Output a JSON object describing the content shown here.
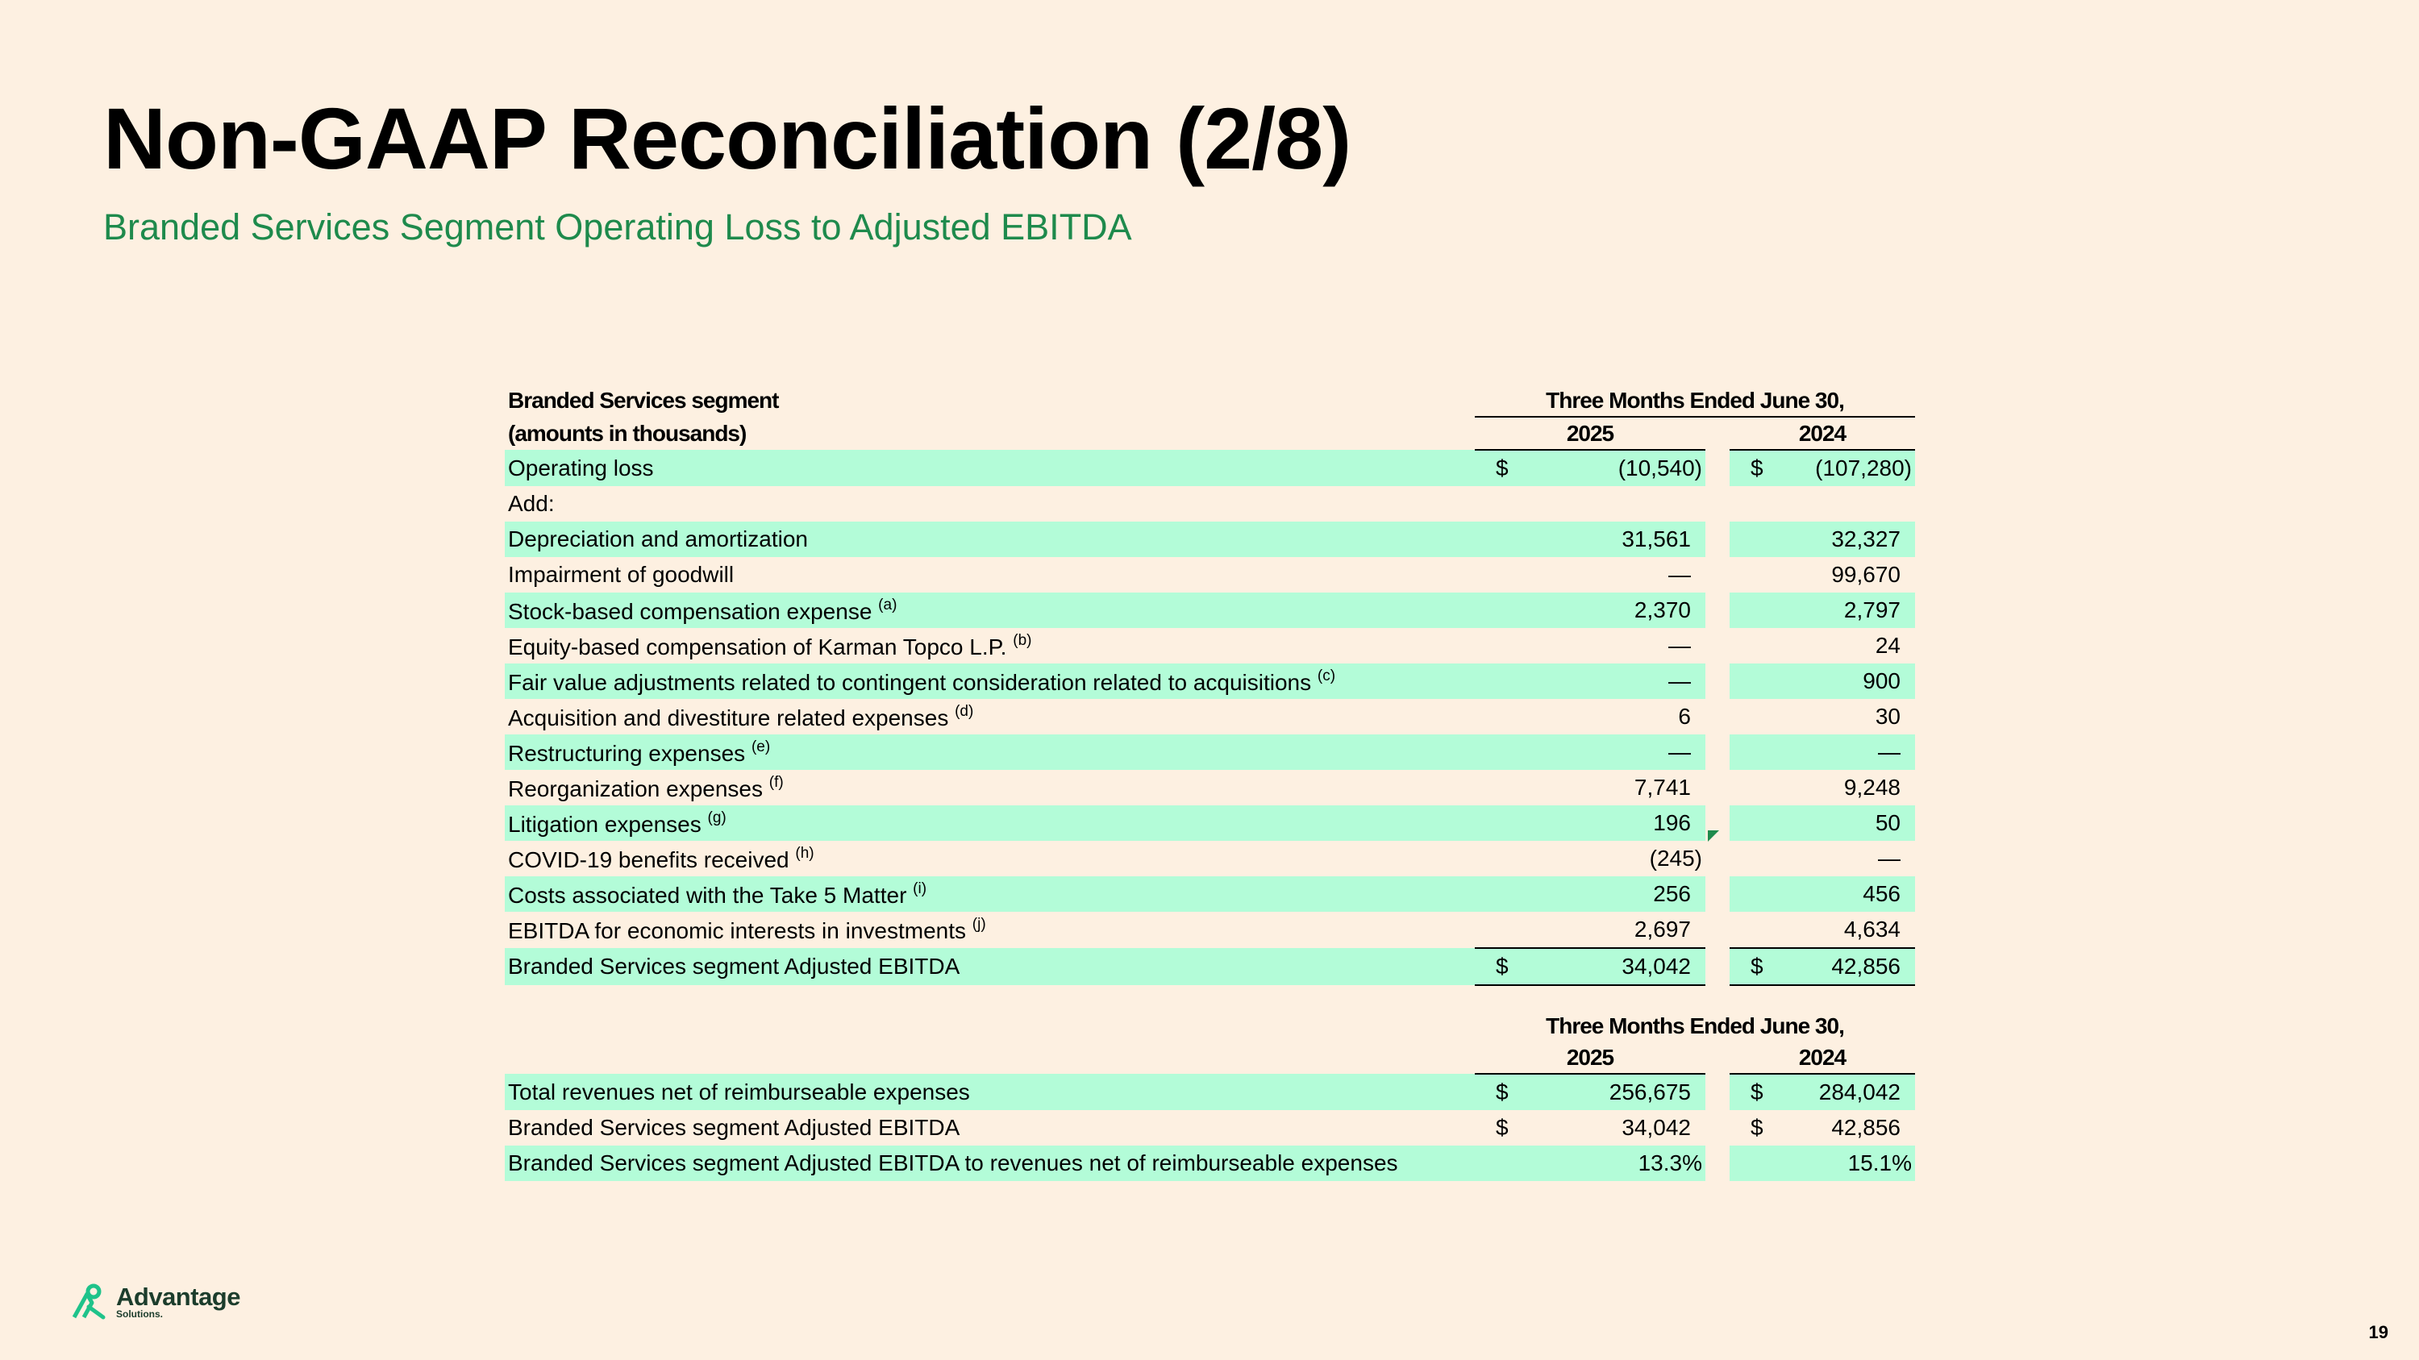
{
  "title": "Non-GAAP Reconciliation (2/8)",
  "subtitle": "Branded Services Segment Operating Loss to Adjusted EBITDA",
  "table1": {
    "header_line1": "Branded Services segment",
    "header_line2": "(amounts in thousands)",
    "period_label": "Three Months Ended June 30,",
    "col_2025": "2025",
    "col_2024": "2024",
    "rows": [
      {
        "label": "Operating loss",
        "sup": "",
        "d1": "$",
        "v2025": "(10,540)",
        "d2": "$",
        "v2024": "(107,280)"
      },
      {
        "label": "Add:",
        "sup": "",
        "d1": "",
        "v2025": "",
        "d2": "",
        "v2024": ""
      },
      {
        "label": "Depreciation and amortization",
        "sup": "",
        "d1": "",
        "v2025": "31,561",
        "d2": "",
        "v2024": "32,327"
      },
      {
        "label": "Impairment of goodwill",
        "sup": "",
        "d1": "",
        "v2025": "—",
        "d2": "",
        "v2024": "99,670"
      },
      {
        "label": "Stock-based compensation expense",
        "sup": "(a)",
        "d1": "",
        "v2025": "2,370",
        "d2": "",
        "v2024": "2,797"
      },
      {
        "label": "Equity-based compensation of Karman Topco L.P.",
        "sup": "(b)",
        "d1": "",
        "v2025": "—",
        "d2": "",
        "v2024": "24"
      },
      {
        "label": "Fair value adjustments related to contingent consideration related to acquisitions",
        "sup": "(c)",
        "d1": "",
        "v2025": "—",
        "d2": "",
        "v2024": "900"
      },
      {
        "label": "Acquisition and divestiture related expenses",
        "sup": "(d)",
        "d1": "",
        "v2025": "6",
        "d2": "",
        "v2024": "30"
      },
      {
        "label": "Restructuring expenses",
        "sup": "(e)",
        "d1": "",
        "v2025": "—",
        "d2": "",
        "v2024": "—"
      },
      {
        "label": "Reorganization expenses",
        "sup": "(f)",
        "d1": "",
        "v2025": "7,741",
        "d2": "",
        "v2024": "9,248"
      },
      {
        "label": "Litigation expenses",
        "sup": "(g)",
        "d1": "",
        "v2025": "196",
        "d2": "",
        "v2024": "50"
      },
      {
        "label": "COVID-19 benefits received",
        "sup": "(h)",
        "d1": "",
        "v2025": "(245)",
        "d2": "",
        "v2024": "—"
      },
      {
        "label": "Costs associated with the Take 5 Matter",
        "sup": "(i)",
        "d1": "",
        "v2025": "256",
        "d2": "",
        "v2024": "456"
      },
      {
        "label": "EBITDA for economic interests in investments",
        "sup": "(j)",
        "d1": "",
        "v2025": "2,697",
        "d2": "",
        "v2024": "4,634"
      },
      {
        "label": "Branded Services segment Adjusted EBITDA",
        "sup": "",
        "d1": "$",
        "v2025": "34,042",
        "d2": "$",
        "v2024": "42,856"
      }
    ]
  },
  "table2": {
    "period_label": "Three Months Ended June 30,",
    "col_2025": "2025",
    "col_2024": "2024",
    "rows": [
      {
        "label": "Total revenues net of reimburseable expenses",
        "d1": "$",
        "v2025": "256,675",
        "d2": "$",
        "v2024": "284,042"
      },
      {
        "label": "Branded Services segment Adjusted EBITDA",
        "d1": "$",
        "v2025": "34,042",
        "d2": "$",
        "v2024": "42,856"
      },
      {
        "label": "Branded Services segment Adjusted EBITDA to revenues net of reimburseable expenses",
        "d1": "",
        "v2025": "13.3%",
        "d2": "",
        "v2024": "15.1%"
      }
    ]
  },
  "logo": {
    "line1": "Advantage",
    "line2": "Solutions."
  },
  "page_number": "19",
  "colors": {
    "background": "#fdf0e1",
    "accent_green": "#1e8a4c",
    "row_highlight": "#b3fcd8"
  }
}
